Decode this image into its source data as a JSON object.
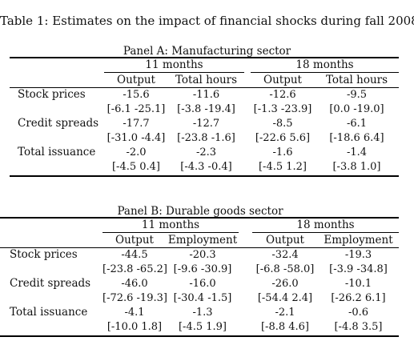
{
  "caption": "Table 1: Estimates on the impact of financial shocks during fall 2008",
  "panels": [
    {
      "title": "Panel A: Manufacturing sector",
      "groups": [
        "11 months",
        "18 months"
      ],
      "columns": [
        "Output",
        "Total hours",
        "Output",
        "Total hours"
      ],
      "rows": [
        {
          "label": "Stock prices",
          "est": [
            "-15.6",
            "-11.6",
            "-12.6",
            "-9.5"
          ],
          "ci": [
            "[-6.1 -25.1]",
            "[-3.8 -19.4]",
            "[-1.3 -23.9]",
            "[0.0 -19.0]"
          ]
        },
        {
          "label": "Credit spreads",
          "est": [
            "-17.7",
            "-12.7",
            "-8.5",
            "-6.1"
          ],
          "ci": [
            "[-31.0 -4.4]",
            "[-23.8 -1.6]",
            "[-22.6 5.6]",
            "[-18.6 6.4]"
          ]
        },
        {
          "label": "Total issuance",
          "est": [
            "-2.0",
            "-2.3",
            "-1.6",
            "-1.4"
          ],
          "ci": [
            "[-4.5 0.4]",
            "[-4.3 -0.4]",
            "[-4.5 1.2]",
            "[-3.8 1.0]"
          ]
        }
      ]
    },
    {
      "title": "Panel B: Durable goods sector",
      "groups": [
        "11 months",
        "18 months"
      ],
      "columns": [
        "Output",
        "Employment",
        "Output",
        "Employment"
      ],
      "rows": [
        {
          "label": "Stock prices",
          "est": [
            "-44.5",
            "-20.3",
            "-32.4",
            "-19.3"
          ],
          "ci": [
            "[-23.8 -65.2]",
            "[-9.6 -30.9]",
            "[-6.8 -58.0]",
            "[-3.9 -34.8]"
          ]
        },
        {
          "label": "Credit spreads",
          "est": [
            "-46.0",
            "-16.0",
            "-26.0",
            "-10.1"
          ],
          "ci": [
            "[-72.6 -19.3]",
            "[-30.4 -1.5]",
            "[-54.4 2.4]",
            "[-26.2 6.1]"
          ]
        },
        {
          "label": "Total issuance",
          "est": [
            "-4.1",
            "-1.3",
            "-2.1",
            "-0.6"
          ],
          "ci": [
            "[-10.0 1.8]",
            "[-4.5 1.9]",
            "[-8.8 4.6]",
            "[-4.8 3.5]"
          ]
        }
      ]
    }
  ]
}
